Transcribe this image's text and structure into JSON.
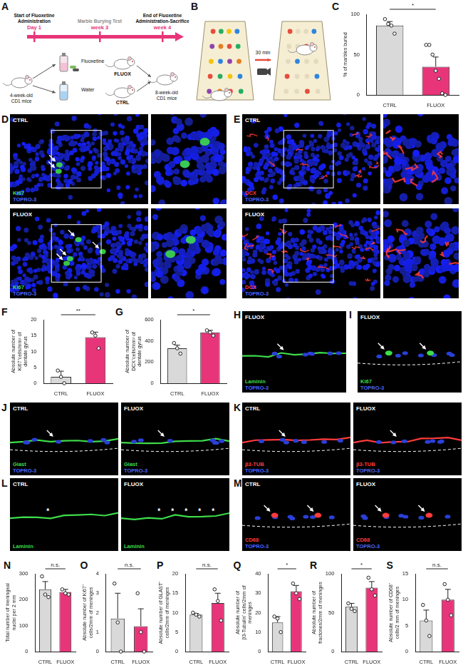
{
  "design": {
    "panel": "A",
    "events": [
      {
        "title": "Start of Fluoxetine Administration",
        "time": "Day 1",
        "color": "#111111"
      },
      {
        "title": "Marble Burying Test",
        "time": "week 3",
        "color": "#8c8c8c"
      },
      {
        "title": "End of Fluoxetine Administration-Sacrifice",
        "time": "week 4",
        "color": "#111111"
      }
    ],
    "start": "4-week-old CD1 mice",
    "end": "8-week-old CD1 mice",
    "groups": [
      {
        "drink": "Fluoxetine",
        "name": "FLUOX"
      },
      {
        "drink": "Water",
        "name": "CTRL"
      }
    ]
  },
  "marble_test": {
    "panel": "B",
    "duration": "30 min"
  },
  "images": [
    {
      "panel": "D",
      "images": [
        {
          "group": "CTRL",
          "stains": [
            {
              "name": "Ki67",
              "color": "#3ddc4a"
            },
            {
              "name": "TOPRO-3",
              "color": "#4a66ff"
            }
          ]
        },
        {
          "group": "FLUOX",
          "stains": [
            {
              "name": "Ki67",
              "color": "#3ddc4a"
            },
            {
              "name": "TOPRO-3",
              "color": "#4a66ff"
            }
          ]
        }
      ]
    },
    {
      "panel": "E",
      "images": [
        {
          "group": "CTRL",
          "stains": [
            {
              "name": "DCX",
              "color": "#ff3b3b"
            },
            {
              "name": "TOPRO-3",
              "color": "#4a66ff"
            }
          ]
        },
        {
          "group": "FLUOX",
          "stains": [
            {
              "name": "DCX",
              "color": "#ff3b3b"
            },
            {
              "name": "TOPRO-3",
              "color": "#4a66ff"
            }
          ]
        }
      ]
    },
    {
      "panel": "H",
      "images": [
        {
          "group": "FLUOX",
          "stains": [
            {
              "name": "Laminin",
              "color": "#3ddc4a"
            },
            {
              "name": "TOPRO-3",
              "color": "#4a66ff"
            }
          ]
        }
      ]
    },
    {
      "panel": "I",
      "images": [
        {
          "group": "FLUOX",
          "stains": [
            {
              "name": "Ki67",
              "color": "#3ddc4a"
            },
            {
              "name": "TOPRO-3",
              "color": "#4a66ff"
            }
          ]
        }
      ]
    },
    {
      "panel": "J",
      "images": [
        {
          "group": "CTRL",
          "stains": [
            {
              "name": "Glast",
              "color": "#3ddc4a"
            },
            {
              "name": "TOPRO-3",
              "color": "#4a66ff"
            }
          ]
        },
        {
          "group": "FLUOX",
          "stains": [
            {
              "name": "Glast",
              "color": "#3ddc4a"
            },
            {
              "name": "TOPRO-3",
              "color": "#4a66ff"
            }
          ]
        }
      ]
    },
    {
      "panel": "K",
      "images": [
        {
          "group": "CTRL",
          "stains": [
            {
              "name": "β3-TUB",
              "color": "#ff3b3b"
            },
            {
              "name": "TOPRO-3",
              "color": "#4a66ff"
            }
          ]
        },
        {
          "group": "FLUOX",
          "stains": [
            {
              "name": "β3-TUB",
              "color": "#ff3b3b"
            },
            {
              "name": "TOPRO-3",
              "color": "#4a66ff"
            }
          ]
        }
      ]
    },
    {
      "panel": "L",
      "images": [
        {
          "group": "CTRL",
          "stains": [
            {
              "name": "Laminin",
              "color": "#3ddc4a"
            }
          ],
          "marks": [
            "*"
          ]
        },
        {
          "group": "FLUOX",
          "stains": [
            {
              "name": "Laminin",
              "color": "#3ddc4a"
            }
          ],
          "marks": [
            "*",
            "*",
            "*",
            "*",
            "*"
          ]
        }
      ]
    },
    {
      "panel": "M",
      "images": [
        {
          "group": "CTRL",
          "stains": [
            {
              "name": "CD68",
              "color": "#ff3b3b"
            },
            {
              "name": "TOPRO-3",
              "color": "#4a66ff"
            }
          ]
        },
        {
          "group": "FLUOX",
          "stains": [
            {
              "name": "CD68",
              "color": "#ff3b3b"
            },
            {
              "name": "TOPRO-3",
              "color": "#4a66ff"
            }
          ]
        }
      ]
    }
  ],
  "chart_data": [
    {
      "panel": "C",
      "type": "bar",
      "y_label": "% of marbles buried",
      "categories": [
        "CTRL",
        "FLUOX"
      ],
      "values": [
        86,
        35
      ],
      "errors": [
        5,
        12
      ],
      "points": [
        [
          94,
          88,
          86,
          76
        ],
        [
          62,
          62,
          50,
          30,
          20,
          2,
          0
        ]
      ],
      "colors": [
        "#d9d9d9",
        "#e8357a"
      ],
      "ylim": [
        0,
        100
      ],
      "yticks": [
        0,
        50,
        100
      ],
      "annotation": "*"
    },
    {
      "panel": "F",
      "type": "bar",
      "y_label": "Absolute number of Ki67⁺cells/mm² of dentate gyrus",
      "categories": [
        "CTRL",
        "FLUOX"
      ],
      "values": [
        2,
        14.5
      ],
      "errors": [
        1.8,
        1.6
      ],
      "points": [
        [
          4,
          2,
          0
        ],
        [
          16,
          15,
          11
        ]
      ],
      "colors": [
        "#d9d9d9",
        "#e8357a"
      ],
      "ylim": [
        0,
        20
      ],
      "yticks": [
        0,
        5,
        10,
        15,
        20
      ],
      "annotation": "**"
    },
    {
      "panel": "G",
      "type": "bar",
      "y_label": "Absolute number of DCX⁺cells/mm² of dentate gyrus",
      "categories": [
        "CTRL",
        "FLUOX"
      ],
      "values": [
        330,
        480
      ],
      "errors": [
        30,
        20
      ],
      "points": [
        [
          380,
          330,
          280
        ],
        [
          500,
          480,
          450
        ]
      ],
      "colors": [
        "#d9d9d9",
        "#e8357a"
      ],
      "ylim": [
        0,
        600
      ],
      "yticks": [
        0,
        200,
        400,
        600
      ],
      "annotation": "*"
    },
    {
      "panel": "N",
      "type": "bar",
      "y_label": "Total number of meningeal nuclei per 2 mm",
      "categories": [
        "CTRL",
        "FLUOX"
      ],
      "values": [
        240,
        230
      ],
      "errors": [
        30,
        10
      ],
      "points": [
        [
          290,
          220,
          210
        ],
        [
          240,
          225,
          220
        ]
      ],
      "colors": [
        "#d9d9d9",
        "#e8357a"
      ],
      "ylim": [
        0,
        300
      ],
      "yticks": [
        0,
        100,
        200,
        300
      ],
      "annotation": "n.s."
    },
    {
      "panel": "O",
      "type": "bar",
      "y_label": "Absolute number of Ki67⁺ cells/2mm of meninges",
      "categories": [
        "CTRL",
        "FLUOX"
      ],
      "values": [
        1.7,
        1.3
      ],
      "errors": [
        1.3,
        0.9
      ],
      "points": [
        [
          3.5,
          1.5,
          0
        ],
        [
          3,
          1,
          0
        ]
      ],
      "colors": [
        "#d9d9d9",
        "#e8357a"
      ],
      "ylim": [
        0,
        4
      ],
      "yticks": [
        0,
        1,
        2,
        3,
        4
      ],
      "annotation": "n.s."
    },
    {
      "panel": "P",
      "type": "bar",
      "y_label": "Absolute number of GLAST⁺ cells/2mm of meninges",
      "categories": [
        "CTRL",
        "FLUOX"
      ],
      "values": [
        9.5,
        12.5
      ],
      "errors": [
        0.3,
        2.5
      ],
      "points": [
        [
          10,
          9.5,
          9
        ],
        [
          16,
          13,
          8
        ]
      ],
      "colors": [
        "#d9d9d9",
        "#e8357a"
      ],
      "ylim": [
        0,
        20
      ],
      "yticks": [
        0,
        5,
        10,
        15,
        20
      ],
      "annotation": "n.s."
    },
    {
      "panel": "Q",
      "type": "bar",
      "y_label": "Absolute number of β3-Tubulin⁺ cells/2mm of meninges",
      "categories": [
        "CTRL",
        "FLUOX"
      ],
      "values": [
        15,
        31
      ],
      "errors": [
        3,
        3
      ],
      "points": [
        [
          18,
          17,
          10
        ],
        [
          35,
          30,
          27
        ]
      ],
      "colors": [
        "#d9d9d9",
        "#e8357a"
      ],
      "ylim": [
        0,
        40
      ],
      "yticks": [
        0,
        10,
        20,
        30,
        40
      ],
      "annotation": "*"
    },
    {
      "panel": "R",
      "type": "bar",
      "y_label": "Absolute number of fractones/2mm of meninges",
      "categories": [
        "CTRL",
        "FLUOX"
      ],
      "values": [
        58,
        82
      ],
      "errors": [
        4,
        8
      ],
      "points": [
        [
          62,
          55,
          52
        ],
        [
          95,
          80,
          72
        ]
      ],
      "colors": [
        "#d9d9d9",
        "#e8357a"
      ],
      "ylim": [
        0,
        100
      ],
      "yticks": [
        0,
        50,
        100
      ],
      "annotation": "*"
    },
    {
      "panel": "S",
      "type": "bar",
      "y_label": "Absolute number of CD68⁺ cells/2 mm of meninges",
      "categories": [
        "CTRL",
        "FLUOX"
      ],
      "values": [
        6,
        10
      ],
      "errors": [
        2,
        2
      ],
      "points": [
        [
          9,
          6,
          3
        ],
        [
          13,
          10,
          7
        ]
      ],
      "colors": [
        "#d9d9d9",
        "#e8357a"
      ],
      "ylim": [
        0,
        15
      ],
      "yticks": [
        0,
        5,
        10,
        15
      ],
      "annotation": "n.s."
    }
  ]
}
